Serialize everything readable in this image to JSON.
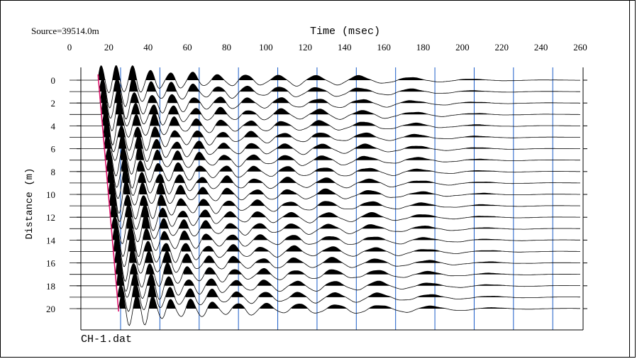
{
  "source_label": "Source=39514.0m",
  "file_label": "CH-1.dat",
  "chart_data": {
    "type": "seismic-wiggle",
    "xlabel": "Time (msec)",
    "ylabel": "Distance (m)",
    "xlim": [
      0,
      260
    ],
    "ylim": [
      0,
      20
    ],
    "x_ticks": [
      0,
      20,
      40,
      60,
      80,
      100,
      120,
      140,
      160,
      180,
      200,
      220,
      240,
      260
    ],
    "y_ticks": [
      0,
      2,
      4,
      6,
      8,
      10,
      12,
      14,
      16,
      18,
      20
    ],
    "gridlines_x": [
      26,
      46,
      66,
      86,
      106,
      126,
      146,
      166,
      186,
      206,
      226,
      246
    ],
    "trace_distances": [
      0,
      1,
      2,
      3,
      4,
      5,
      6,
      7,
      8,
      9,
      10,
      11,
      12,
      13,
      14,
      15,
      16,
      17,
      18,
      19,
      20
    ],
    "first_break_line": {
      "color": "#e0106a",
      "points": [
        [
          14.5,
          0
        ],
        [
          25,
          20
        ]
      ]
    }
  }
}
